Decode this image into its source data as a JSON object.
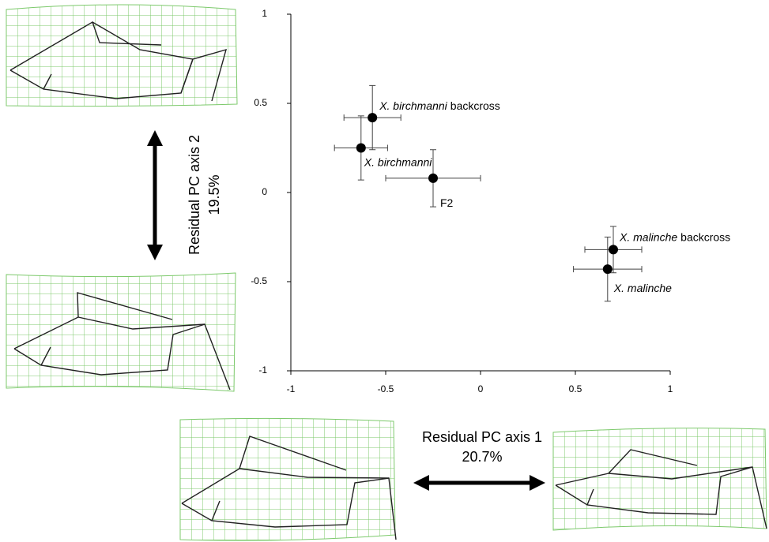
{
  "chart_data": {
    "type": "scatter",
    "xlabel": "Residual PC axis 1",
    "xlabel_value": "20.7%",
    "ylabel": "Residual PC axis 2",
    "ylabel_value": "19.5%",
    "xlim": [
      -1,
      1
    ],
    "ylim": [
      -1,
      1
    ],
    "xticks": [
      -1,
      -0.5,
      0,
      0.5,
      1
    ],
    "yticks": [
      -1,
      -0.5,
      0,
      0.5,
      1
    ],
    "grid": false,
    "series": [
      {
        "color": "#000000",
        "x": [
          -0.57,
          -0.63,
          -0.25,
          0.7,
          0.67
        ],
        "values": [
          0.42,
          0.25,
          0.08,
          -0.32,
          -0.43
        ],
        "xerr": [
          0.15,
          0.14,
          0.25,
          0.15,
          0.18
        ],
        "yerr": [
          0.18,
          0.18,
          0.16,
          0.13,
          0.18
        ],
        "labels": [
          {
            "italic": "X. birchmanni",
            "plain": "backcross"
          },
          {
            "italic": "X. birchmanni"
          },
          {
            "plain": "F2"
          },
          {
            "italic": "X. malinche",
            "plain": "backcross"
          },
          {
            "italic": "X. malinche"
          }
        ]
      }
    ]
  }
}
